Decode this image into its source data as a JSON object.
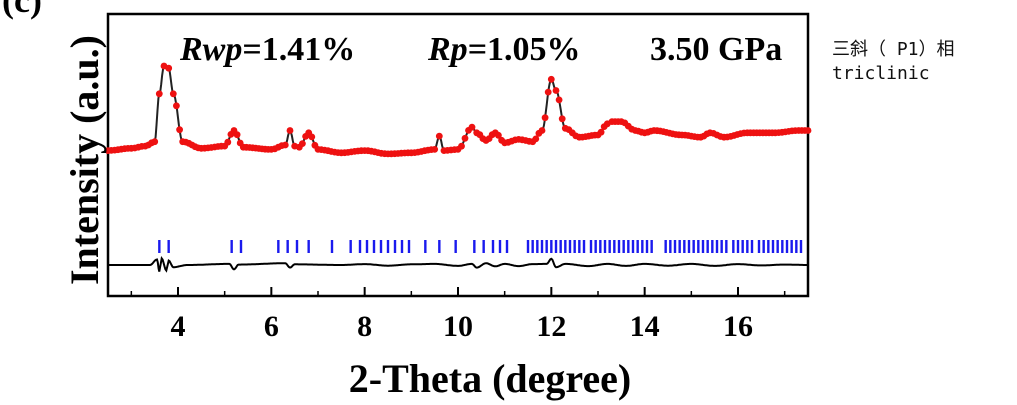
{
  "panel_label": "(c)",
  "annotation": {
    "line1": "三斜（ P1）相",
    "line2": "triclinic"
  },
  "chart_data": {
    "type": "line",
    "xlabel": "2-Theta (degree)",
    "ylabel": "Intensity (a.u.)",
    "xlim": [
      2.5,
      17.5
    ],
    "xticks": [
      4,
      6,
      8,
      10,
      12,
      14,
      16
    ],
    "stats": [
      {
        "name": "Rwp",
        "value": "=1.41%"
      },
      {
        "name": "Rp",
        "value": "=1.05%"
      },
      {
        "text": "3.50 GPa"
      }
    ],
    "profile": {
      "x": [
        2.5,
        3.0,
        3.3,
        3.5,
        3.6,
        3.7,
        3.8,
        3.9,
        4.1,
        4.5,
        5.0,
        5.2,
        5.4,
        6.0,
        6.3,
        6.4,
        6.5,
        6.6,
        6.8,
        7.0,
        7.5,
        8.0,
        8.5,
        9.0,
        9.5,
        9.6,
        9.7,
        10.0,
        10.3,
        10.4,
        10.6,
        10.8,
        11.0,
        11.3,
        11.6,
        11.8,
        12.0,
        12.1,
        12.3,
        12.6,
        13.0,
        13.2,
        13.3,
        13.5,
        13.8,
        14.0,
        14.2,
        14.8,
        15.2,
        15.4,
        15.7,
        16.2,
        16.8,
        17.3,
        17.5
      ],
      "y": [
        0.04,
        0.06,
        0.08,
        0.12,
        0.55,
        0.8,
        0.78,
        0.55,
        0.12,
        0.06,
        0.08,
        0.22,
        0.07,
        0.05,
        0.09,
        0.22,
        0.08,
        0.07,
        0.2,
        0.05,
        0.02,
        0.04,
        0.01,
        0.02,
        0.05,
        0.17,
        0.04,
        0.05,
        0.25,
        0.2,
        0.13,
        0.2,
        0.11,
        0.14,
        0.12,
        0.22,
        0.68,
        0.58,
        0.24,
        0.16,
        0.18,
        0.28,
        0.3,
        0.3,
        0.22,
        0.2,
        0.22,
        0.18,
        0.16,
        0.2,
        0.16,
        0.2,
        0.2,
        0.22,
        0.22
      ]
    },
    "reflections_x": [
      3.6,
      3.8,
      5.15,
      5.35,
      6.15,
      6.35,
      6.55,
      6.8,
      7.3,
      7.7,
      7.9,
      8.05,
      8.2,
      8.35,
      8.5,
      8.65,
      8.8,
      8.95,
      9.3,
      9.6,
      9.95,
      10.35,
      10.55,
      10.75,
      10.9,
      11.05,
      11.5,
      11.6,
      11.7,
      11.8,
      11.9,
      12.0,
      12.1,
      12.2,
      12.3,
      12.4,
      12.5,
      12.6,
      12.7,
      12.85,
      12.95,
      13.05,
      13.15,
      13.25,
      13.35,
      13.45,
      13.55,
      13.65,
      13.75,
      13.85,
      13.95,
      14.05,
      14.15,
      14.45,
      14.55,
      14.65,
      14.75,
      14.85,
      14.95,
      15.05,
      15.15,
      15.25,
      15.35,
      15.45,
      15.55,
      15.65,
      15.75,
      15.9,
      16.0,
      16.1,
      16.2,
      16.3,
      16.45,
      16.55,
      16.65,
      16.75,
      16.85,
      16.95,
      17.05,
      17.15,
      17.25,
      17.35
    ],
    "difference": {
      "x": [
        2.5,
        3.4,
        3.55,
        3.6,
        3.65,
        3.75,
        3.8,
        3.9,
        4.2,
        5.1,
        5.2,
        5.3,
        6.3,
        6.4,
        6.5,
        7.5,
        8.0,
        8.5,
        9.0,
        9.5,
        10.0,
        10.3,
        10.4,
        10.6,
        10.8,
        11.0,
        11.3,
        11.6,
        11.9,
        12.0,
        12.1,
        12.3,
        12.8,
        13.2,
        13.6,
        14.0,
        14.5,
        15.0,
        15.5,
        16.0,
        16.5,
        17.0,
        17.5
      ],
      "y": [
        0.0,
        0.0,
        0.25,
        -0.3,
        0.3,
        -0.25,
        0.2,
        -0.1,
        0.0,
        0.05,
        -0.2,
        0.02,
        0.08,
        -0.12,
        0.03,
        0.0,
        0.04,
        -0.03,
        0.03,
        0.05,
        -0.04,
        0.05,
        -0.12,
        0.08,
        -0.06,
        0.05,
        -0.05,
        0.04,
        0.05,
        0.28,
        -0.1,
        0.05,
        -0.05,
        0.05,
        -0.04,
        0.05,
        -0.03,
        0.05,
        -0.04,
        0.04,
        -0.02,
        0.02,
        0.0
      ]
    }
  }
}
